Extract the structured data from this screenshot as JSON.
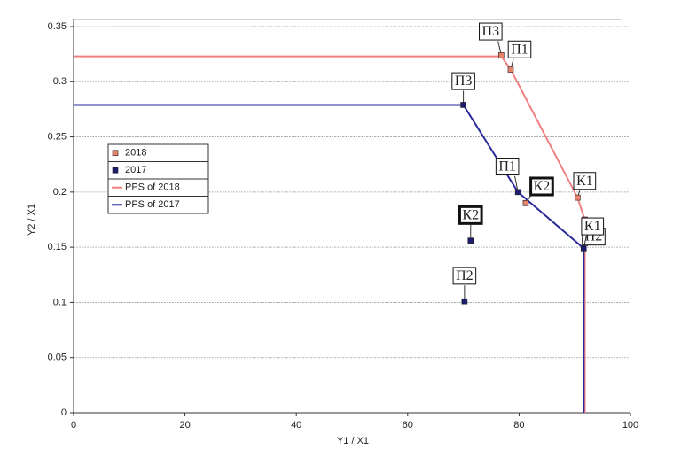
{
  "chart_data": {
    "type": "scatter",
    "xlabel": "Y1 / X1",
    "ylabel": "Y2 / X1",
    "xlim": [
      0,
      100
    ],
    "xticks": [
      0,
      20,
      40,
      60,
      80,
      100
    ],
    "ylim": [
      0,
      0.35
    ],
    "yticks": [
      0,
      0.05,
      0.1,
      0.15,
      0.2,
      0.25,
      0.3,
      0.35
    ],
    "grid": true,
    "legend": "left",
    "series": [
      {
        "name": "2018",
        "kind": "marker",
        "color": "#e8826a",
        "x": [
          76.8,
          78.5,
          81.2,
          90.5,
          91.8
        ],
        "values": [
          0.324,
          0.311,
          0.19,
          0.195,
          0.175
        ],
        "labels": [
          "П3",
          "П1",
          "К2",
          "К1",
          "П2"
        ],
        "emphasized": [
          false,
          false,
          true,
          false,
          false
        ]
      },
      {
        "name": "2017",
        "kind": "marker",
        "color": "#1c1c6e",
        "x": [
          70,
          79.8,
          71.3,
          70.2,
          91.6
        ],
        "values": [
          0.279,
          0.2,
          0.156,
          0.101,
          0.149
        ],
        "labels": [
          "П3",
          "П1",
          "К2",
          "П2",
          "К1"
        ],
        "emphasized": [
          false,
          false,
          true,
          false,
          false
        ]
      },
      {
        "name": "PPS of 2018",
        "kind": "line",
        "color": "#f08080",
        "x": [
          0,
          76.8,
          78.5,
          90.5,
          91.8,
          91.8
        ],
        "values": [
          0.323,
          0.323,
          0.311,
          0.195,
          0.175,
          0
        ]
      },
      {
        "name": "PPS of 2017",
        "kind": "line",
        "color": "#2a2a9a",
        "x": [
          0,
          70,
          79.8,
          91.6,
          91.6
        ],
        "values": [
          0.279,
          0.279,
          0.2,
          0.149,
          0
        ]
      }
    ]
  }
}
